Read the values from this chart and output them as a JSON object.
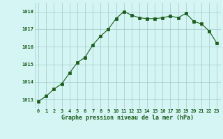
{
  "x": [
    0,
    1,
    2,
    3,
    4,
    5,
    6,
    7,
    8,
    9,
    10,
    11,
    12,
    13,
    14,
    15,
    16,
    17,
    18,
    19,
    20,
    21,
    22,
    23
  ],
  "y": [
    1012.9,
    1013.2,
    1013.6,
    1013.9,
    1014.5,
    1015.1,
    1015.4,
    1016.1,
    1016.6,
    1017.0,
    1017.6,
    1018.0,
    1017.8,
    1017.65,
    1017.6,
    1017.6,
    1017.65,
    1017.75,
    1017.65,
    1017.9,
    1017.45,
    1017.3,
    1016.9,
    1016.2
  ],
  "line_color": "#1a5c1a",
  "marker": "s",
  "marker_size": 2.5,
  "bg_color": "#d5f5f5",
  "grid_color": "#a0c8c8",
  "text_color": "#1a5c1a",
  "xlabel": "Graphe pression niveau de la mer (hPa)",
  "yticks": [
    1013,
    1014,
    1015,
    1016,
    1017,
    1018
  ],
  "xticks": [
    0,
    1,
    2,
    3,
    4,
    5,
    6,
    7,
    8,
    9,
    10,
    11,
    12,
    13,
    14,
    15,
    16,
    17,
    18,
    19,
    20,
    21,
    22,
    23
  ],
  "ylim": [
    1012.5,
    1018.5
  ],
  "xlim": [
    -0.5,
    23.5
  ]
}
